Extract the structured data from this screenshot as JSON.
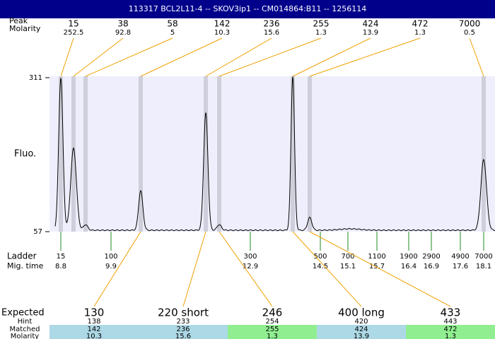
{
  "header": {
    "title": "113317  BCL2L11-4 -- SKOV3ip1 -- CM014864:B11 -- 1256114"
  },
  "peaks": {
    "label": "Peak",
    "molarity_label": "Molarity",
    "sizes": [
      15,
      38,
      58,
      142,
      236,
      255,
      424,
      472,
      7000
    ],
    "molarity": [
      252.5,
      92.8,
      5,
      10.3,
      15.6,
      1.3,
      13.9,
      1.3,
      0.5
    ]
  },
  "plot": {
    "y_label": "Fluo.",
    "yticks": [
      57,
      311
    ]
  },
  "ladder": {
    "label": "Ladder",
    "mig_label": "Mig. time",
    "sizes": [
      15,
      100,
      300,
      500,
      700,
      1100,
      1900,
      2900,
      4900,
      7000
    ],
    "mig_times": [
      8.8,
      9.9,
      12.9,
      14.5,
      15.1,
      15.7,
      16.4,
      16.9,
      17.6,
      18.1
    ]
  },
  "table": {
    "labels": [
      "Expected",
      "Hint",
      "Matched",
      "Molarity"
    ],
    "expected": [
      130,
      "220 short",
      246,
      "400 long",
      433
    ],
    "hint": [
      138,
      233,
      254,
      420,
      443
    ],
    "matched": [
      142,
      236,
      255,
      424,
      472
    ],
    "molarity": [
      10.3,
      15.6,
      1.3,
      13.9,
      1.3
    ],
    "colors": [
      "#add8e6",
      "#add8e6",
      "#90ee90",
      "#add8e6",
      "#90ee90"
    ]
  }
}
